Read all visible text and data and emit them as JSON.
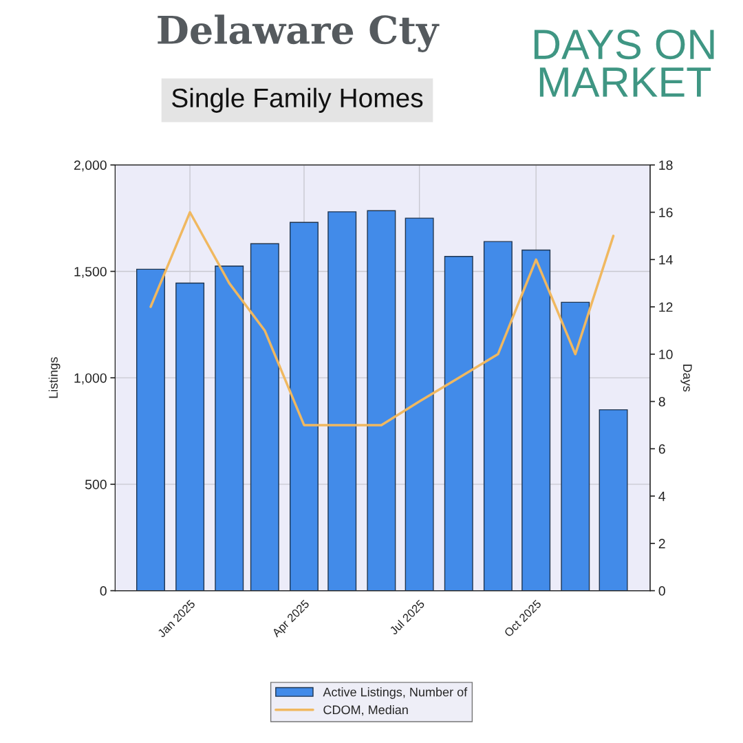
{
  "chart_data": {
    "type": "bar",
    "title": "Delaware Cty",
    "subtitle": "Single Family Homes",
    "annotations": [
      "DAYS ON MARKET"
    ],
    "x": [
      "2024-12-01",
      "2025-01-01",
      "2025-02-01",
      "2025-03-01",
      "2025-04-01",
      "2025-05-01",
      "2025-06-01",
      "2025-07-01",
      "2025-08-01",
      "2025-09-01",
      "2025-10-01",
      "2025-11-01",
      "2025-12-01"
    ],
    "xlim": [
      "2024-11-03",
      "2025-12-30"
    ],
    "xticks": [
      {
        "value": "2025-01-01",
        "label": "Jan 2025"
      },
      {
        "value": "2025-04-01",
        "label": "Apr 2025"
      },
      {
        "value": "2025-07-01",
        "label": "Jul 2025"
      },
      {
        "value": "2025-10-01",
        "label": "Oct 2025"
      }
    ],
    "ylabel": "Listings",
    "y2label": "Days",
    "ylim": [
      0,
      2000
    ],
    "yticks": [
      0,
      {
        "value": 500,
        "label": "500"
      },
      {
        "value": 1000,
        "label": "1,000"
      },
      {
        "value": 1500,
        "label": "1,500"
      },
      {
        "value": 2000,
        "label": "2,000"
      }
    ],
    "y2lim": [
      0,
      18
    ],
    "y2ticks": [
      0,
      2,
      4,
      6,
      8,
      10,
      12,
      14,
      16,
      18
    ],
    "series": [
      {
        "name": "Active Listings, Number of",
        "color": "#428be9",
        "values": [
          1510,
          1445,
          1525,
          1630,
          1730,
          1780,
          1785,
          1750,
          1570,
          1640,
          1600,
          1355,
          850
        ]
      },
      {
        "name": "CDOM, Median",
        "type": "line",
        "axis": "y2",
        "color": "#f0b860",
        "values": [
          12,
          16,
          13,
          11,
          7,
          7,
          7,
          8,
          9,
          10,
          14,
          10,
          15
        ]
      }
    ],
    "grid": true,
    "legend": "bottom"
  }
}
